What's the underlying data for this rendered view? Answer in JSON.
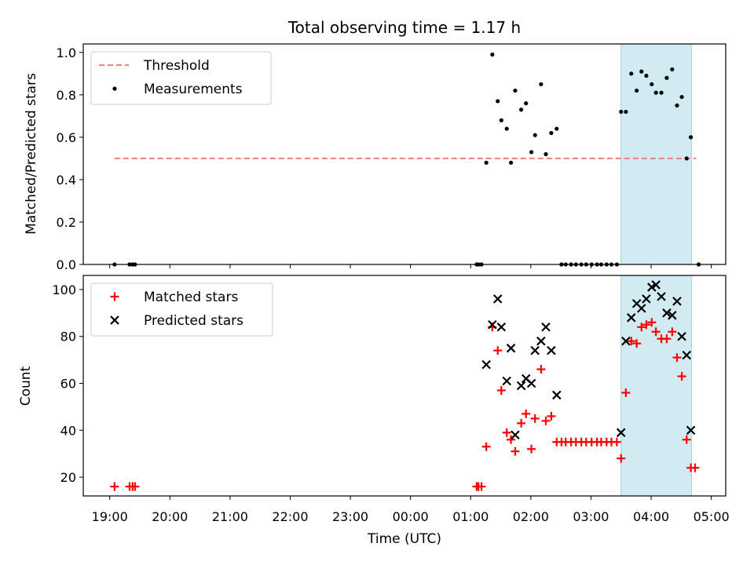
{
  "chart_data": {
    "type": "scatter",
    "title": "Total observing time = 1.17 h",
    "xlabel": "Time (UTC)",
    "x_ticks": [
      "19:00",
      "20:00",
      "21:00",
      "22:00",
      "23:00",
      "00:00",
      "01:00",
      "02:00",
      "03:00",
      "04:00",
      "05:00"
    ],
    "x_tick_hours": [
      0,
      1,
      2,
      3,
      4,
      5,
      6,
      7,
      8,
      9,
      10
    ],
    "x_axis_unit": "hours since 19:00 UTC",
    "xlim": [
      -0.44,
      10.24
    ],
    "highlight_span": {
      "x": [
        8.5,
        9.67
      ],
      "color": "#add8e6"
    },
    "panels": [
      {
        "ylabel": "Matched/Predicted stars",
        "ylim": [
          0,
          1.04
        ],
        "y_ticks": [
          "0.0",
          "0.2",
          "0.4",
          "0.6",
          "0.8",
          "1.0"
        ],
        "y_tick_values": [
          0,
          0.2,
          0.4,
          0.6,
          0.8,
          1.0
        ],
        "legend": {
          "position": "upper left",
          "entries": [
            "Threshold",
            "Measurements"
          ]
        },
        "series": [
          {
            "name": "Threshold",
            "style": "dashed",
            "color": "#f08080",
            "x": [
              0.08,
              9.75
            ],
            "y": [
              0.5,
              0.5
            ]
          },
          {
            "name": "Measurements",
            "style": "dots",
            "color": "#000000",
            "x": [
              0.08,
              0.33,
              0.38,
              0.42,
              6.1,
              6.13,
              6.18,
              6.26,
              6.36,
              6.45,
              6.51,
              6.6,
              6.67,
              6.74,
              6.84,
              6.92,
              7.01,
              7.07,
              7.17,
              7.25,
              7.34,
              7.43,
              7.51,
              7.58,
              7.67,
              7.75,
              7.84,
              7.92,
              8.01,
              8.1,
              8.17,
              8.26,
              8.34,
              8.43,
              8.5,
              8.58,
              8.67,
              8.76,
              8.84,
              8.92,
              9.01,
              9.08,
              9.17,
              9.26,
              9.35,
              9.43,
              9.51,
              9.59,
              9.66,
              9.79
            ],
            "y": [
              0.0,
              0.0,
              0.0,
              0.0,
              0.0,
              0.0,
              0.0,
              0.48,
              0.99,
              0.77,
              0.68,
              0.64,
              0.48,
              0.82,
              0.73,
              0.76,
              0.53,
              0.61,
              0.85,
              0.52,
              0.62,
              0.64,
              0.0,
              0.0,
              0.0,
              0.0,
              0.0,
              0.0,
              0.0,
              0.0,
              0.0,
              0.0,
              0.0,
              0.0,
              0.72,
              0.72,
              0.9,
              0.82,
              0.91,
              0.89,
              0.85,
              0.81,
              0.81,
              0.88,
              0.92,
              0.75,
              0.79,
              0.5,
              0.6,
              0.0
            ]
          }
        ]
      },
      {
        "ylabel": "Count",
        "ylim": [
          12,
          106
        ],
        "y_ticks": [
          "20",
          "40",
          "60",
          "80",
          "100"
        ],
        "y_tick_values": [
          20,
          40,
          60,
          80,
          100
        ],
        "legend": {
          "position": "upper left",
          "entries": [
            "Matched stars",
            "Predicted stars"
          ]
        },
        "series": [
          {
            "name": "Matched stars",
            "marker": "plus",
            "color": "#ff0000",
            "x": [
              0.08,
              0.33,
              0.38,
              0.42,
              6.1,
              6.13,
              6.18,
              6.26,
              6.36,
              6.45,
              6.51,
              6.6,
              6.67,
              6.74,
              6.84,
              6.92,
              7.01,
              7.07,
              7.17,
              7.25,
              7.34,
              7.43,
              7.51,
              7.58,
              7.67,
              7.75,
              7.84,
              7.92,
              8.01,
              8.1,
              8.17,
              8.26,
              8.34,
              8.43,
              8.5,
              8.58,
              8.67,
              8.76,
              8.84,
              8.92,
              9.01,
              9.08,
              9.17,
              9.26,
              9.35,
              9.43,
              9.51,
              9.59,
              9.66,
              9.73
            ],
            "y": [
              16,
              16,
              16,
              16,
              16,
              16,
              16,
              33,
              84,
              74,
              57,
              39,
              36,
              31,
              43,
              47,
              32,
              45,
              66,
              44,
              46,
              35,
              35,
              35,
              35,
              35,
              35,
              35,
              35,
              35,
              35,
              35,
              35,
              35,
              28,
              56,
              78,
              77,
              84,
              85,
              86,
              82,
              79,
              79,
              82,
              71,
              63,
              36,
              24,
              24
            ]
          },
          {
            "name": "Predicted stars",
            "marker": "x",
            "color": "#000000",
            "x": [
              6.26,
              6.36,
              6.45,
              6.51,
              6.6,
              6.67,
              6.74,
              6.84,
              6.92,
              7.01,
              7.07,
              7.17,
              7.25,
              7.34,
              7.43,
              8.5,
              8.58,
              8.67,
              8.76,
              8.84,
              8.92,
              9.01,
              9.08,
              9.17,
              9.26,
              9.35,
              9.43,
              9.51,
              9.59,
              9.66
            ],
            "y": [
              68,
              85,
              96,
              84,
              61,
              75,
              38,
              59,
              62,
              60,
              74,
              78,
              84,
              74,
              55,
              39,
              78,
              88,
              94,
              92,
              96,
              101,
              102,
              97,
              90,
              89,
              95,
              80,
              72,
              40
            ]
          }
        ]
      }
    ]
  }
}
